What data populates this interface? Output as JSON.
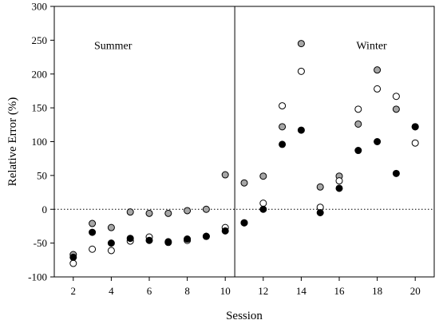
{
  "chart_data": {
    "type": "scatter",
    "title": "",
    "xlabel": "Session",
    "ylabel": "Relative Error (%)",
    "xlim": [
      1,
      21
    ],
    "ylim": [
      -100,
      300
    ],
    "xticks": [
      2,
      4,
      6,
      8,
      10,
      12,
      14,
      16,
      18,
      20
    ],
    "yticks": [
      -100,
      -50,
      0,
      50,
      100,
      150,
      200,
      250,
      300
    ],
    "divider_x": 10.5,
    "reference_line_y": 0,
    "annotations": [
      {
        "text": "Summer",
        "x": 3.1,
        "y": 237
      },
      {
        "text": "Winter",
        "x": 16.9,
        "y": 237
      }
    ],
    "colors": {
      "filled": "#000000",
      "gray": "#a6a6a6",
      "open": "#ffffff"
    },
    "series": [
      {
        "style": "gray",
        "points": [
          [
            2,
            -67
          ],
          [
            3,
            -21
          ],
          [
            4,
            -27
          ],
          [
            5,
            -4
          ],
          [
            6,
            -6
          ],
          [
            7,
            -6
          ],
          [
            8,
            -2
          ],
          [
            9,
            0
          ],
          [
            10,
            51
          ],
          [
            11,
            39
          ],
          [
            12,
            49
          ],
          [
            13,
            122
          ],
          [
            14,
            245
          ],
          [
            15,
            33
          ],
          [
            16,
            49
          ],
          [
            17,
            126
          ],
          [
            18,
            206
          ],
          [
            19,
            148
          ],
          [
            20,
            122
          ]
        ]
      },
      {
        "style": "open",
        "points": [
          [
            2,
            -80
          ],
          [
            3,
            -59
          ],
          [
            4,
            -61
          ],
          [
            5,
            -47
          ],
          [
            6,
            -41
          ],
          [
            7,
            -49
          ],
          [
            8,
            -46
          ],
          [
            9,
            -40
          ],
          [
            10,
            -27
          ],
          [
            11,
            -20
          ],
          [
            12,
            9
          ],
          [
            13,
            153
          ],
          [
            14,
            204
          ],
          [
            15,
            3
          ],
          [
            16,
            42
          ],
          [
            17,
            148
          ],
          [
            18,
            178
          ],
          [
            19,
            167
          ],
          [
            20,
            98
          ]
        ]
      },
      {
        "style": "filled",
        "points": [
          [
            2,
            -71
          ],
          [
            3,
            -34
          ],
          [
            4,
            -50
          ],
          [
            5,
            -43
          ],
          [
            6,
            -46
          ],
          [
            7,
            -48
          ],
          [
            8,
            -44
          ],
          [
            9,
            -40
          ],
          [
            10,
            -32
          ],
          [
            11,
            -20
          ],
          [
            12,
            0
          ],
          [
            13,
            96
          ],
          [
            14,
            117
          ],
          [
            15,
            -5
          ],
          [
            16,
            31
          ],
          [
            17,
            87
          ],
          [
            18,
            100
          ],
          [
            19,
            53
          ],
          [
            20,
            122
          ]
        ]
      }
    ]
  }
}
